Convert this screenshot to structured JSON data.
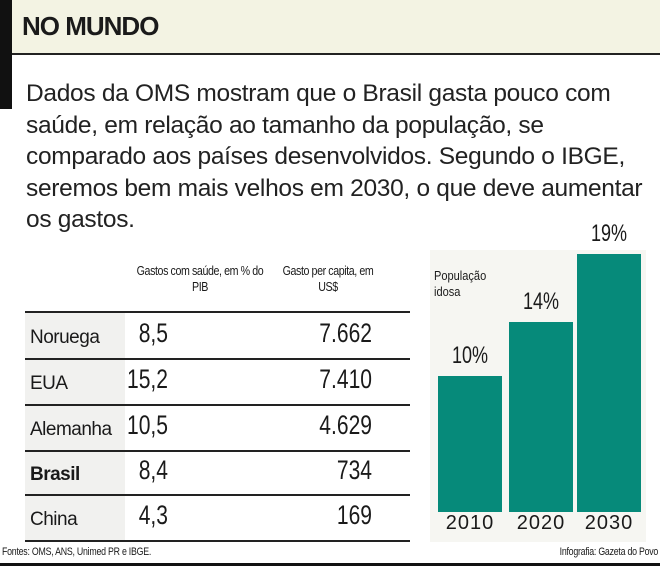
{
  "header": {
    "title": "NO MUNDO"
  },
  "intro": "Dados da OMS mostram que o Brasil gasta pouco com saúde, em relação ao tamanho da população, se comparado aos países desenvolvidos. Segundo o IBGE, seremos bem mais velhos em 2030, o que deve aumentar os gastos.",
  "table": {
    "headers": [
      "Gastos com saúde, em % do PIB",
      "Gasto per capita, em US$"
    ],
    "rows": [
      {
        "country": "Noruega",
        "pib": "8,5",
        "per_capita": "7.662"
      },
      {
        "country": "EUA",
        "pib": "15,2",
        "per_capita": "7.410"
      },
      {
        "country": "Alemanha",
        "pib": "10,5",
        "per_capita": "4.629"
      },
      {
        "country": "Brasil",
        "pib": "8,4",
        "per_capita": "734"
      },
      {
        "country": "China",
        "pib": "4,3",
        "per_capita": "169"
      }
    ]
  },
  "chart_data": {
    "type": "bar",
    "title": "População idosa",
    "categories": [
      "2010",
      "2020",
      "2030"
    ],
    "values": [
      10,
      14,
      19
    ],
    "labels": [
      "10%",
      "14%",
      "19%"
    ],
    "color": "#068a7a"
  },
  "footer": {
    "sources": "Fontes: OMS, ANS, Unimed PR e IBGE.",
    "credit": "Infografia: Gazeta do Povo"
  }
}
